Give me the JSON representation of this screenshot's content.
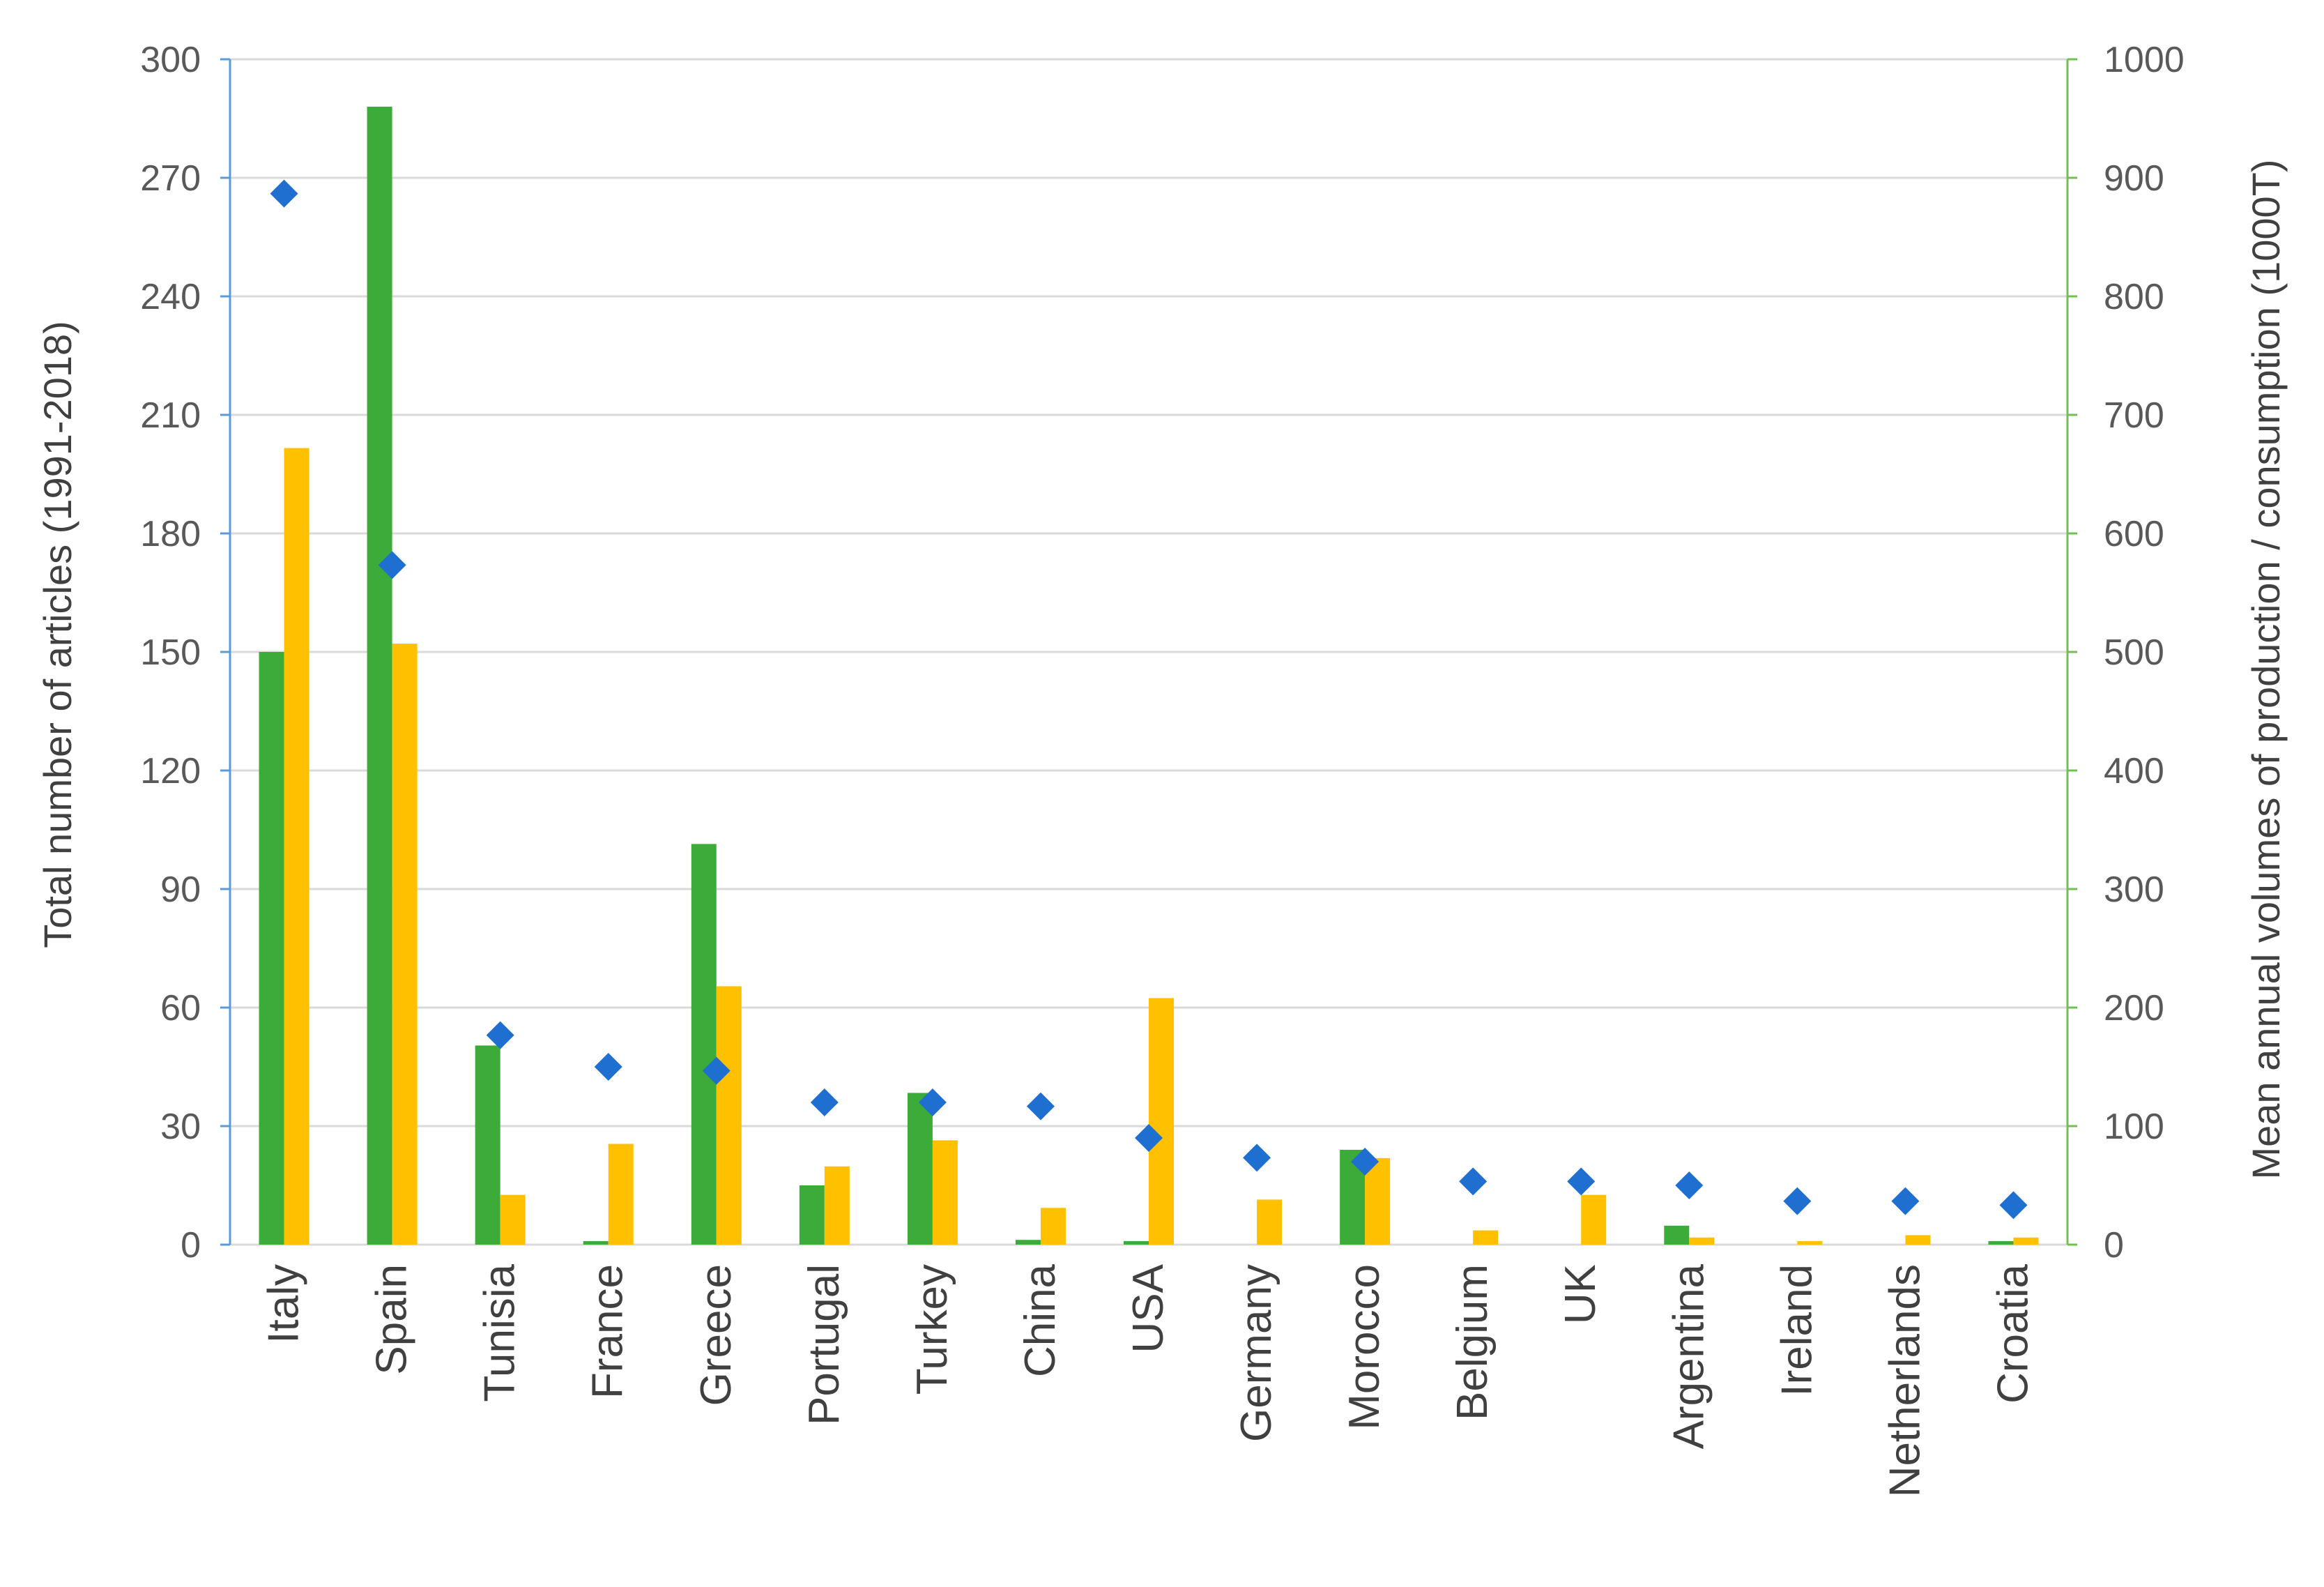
{
  "chart_data": {
    "type": "bar",
    "categories": [
      "Italy",
      "Spain",
      "Tunisia",
      "France",
      "Greece",
      "Portugal",
      "Turkey",
      "China",
      "USA",
      "Germany",
      "Morocco",
      "Belgium",
      "UK",
      "Argentina",
      "Ireland",
      "Netherlands",
      "Croatia"
    ],
    "series": [
      {
        "axis": "right",
        "kind": "bar",
        "color": "#3cab3a",
        "values": [
          500,
          960,
          168,
          3,
          338,
          50,
          128,
          4,
          3,
          0,
          80,
          0,
          0,
          16,
          0,
          0,
          3
        ]
      },
      {
        "axis": "right",
        "kind": "bar",
        "color": "#ffc000",
        "values": [
          672,
          507,
          42,
          85,
          218,
          66,
          88,
          31,
          208,
          38,
          73,
          12,
          42,
          6,
          3,
          8,
          6
        ]
      },
      {
        "axis": "left",
        "kind": "marker",
        "color": "#1f6fd1",
        "values": [
          266,
          172,
          53,
          45,
          44,
          36,
          36,
          35,
          27,
          22,
          21,
          16,
          16,
          15,
          11,
          11,
          10
        ]
      }
    ],
    "ylabel": "Total number of articles (1991-2018)",
    "ylabel_right": "Mean annual volumes of production / consumption (1000T)",
    "ylim": [
      0,
      300
    ],
    "ylim_right": [
      0,
      1000
    ],
    "yticks": [
      "0",
      "30",
      "60",
      "90",
      "120",
      "150",
      "180",
      "210",
      "240",
      "270",
      "300"
    ],
    "yticks_right": [
      "0",
      "100",
      "200",
      "300",
      "400",
      "500",
      "600",
      "700",
      "800",
      "900",
      "1000"
    ],
    "grid": true,
    "left_axis_color": "#5b9bd5",
    "right_axis_color": "#70c050",
    "gridline_color": "#d9d9d9"
  }
}
